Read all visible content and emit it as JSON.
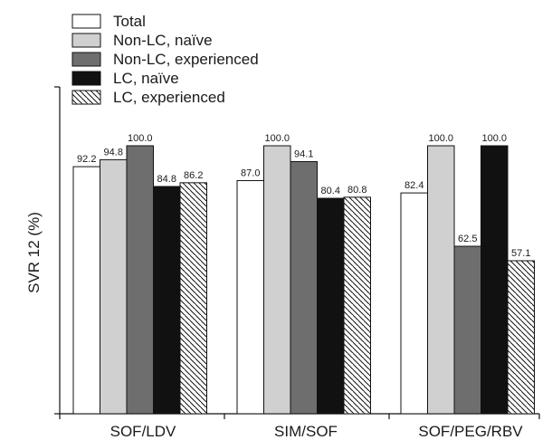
{
  "chart_data": {
    "type": "bar",
    "title": "",
    "xlabel": "",
    "ylabel": "SVR 12 (%)",
    "ylim": [
      0,
      100
    ],
    "categories": [
      "SOF/LDV",
      "SIM/SOF",
      "SOF/PEG/RBV"
    ],
    "series": [
      {
        "name": "Total",
        "values": [
          92.2,
          87.0,
          82.4
        ],
        "labels": [
          "92.2",
          "87.0",
          "82.4"
        ],
        "fill": "#ffffff",
        "pattern": "none"
      },
      {
        "name": "Non-LC, naïve",
        "values": [
          94.8,
          100.0,
          100.0
        ],
        "labels": [
          "94.8",
          "100.0",
          "100.0"
        ],
        "fill": "#d0d0d0",
        "pattern": "none"
      },
      {
        "name": "Non-LC, experienced",
        "values": [
          100.0,
          94.1,
          62.5
        ],
        "labels": [
          "100.0",
          "94.1",
          "62.5"
        ],
        "fill": "#6e6e6e",
        "pattern": "none"
      },
      {
        "name": "LC, naïve",
        "values": [
          84.8,
          80.4,
          100.0
        ],
        "labels": [
          "84.8",
          "80.4",
          "100.0"
        ],
        "fill": "#111111",
        "pattern": "none"
      },
      {
        "name": "LC, experienced",
        "values": [
          86.2,
          80.8,
          57.1
        ],
        "labels": [
          "86.2",
          "80.8",
          "57.1"
        ],
        "fill": "#ffffff",
        "pattern": "diagonal-hatch"
      }
    ],
    "legend_position": "top-left",
    "grid": false
  }
}
